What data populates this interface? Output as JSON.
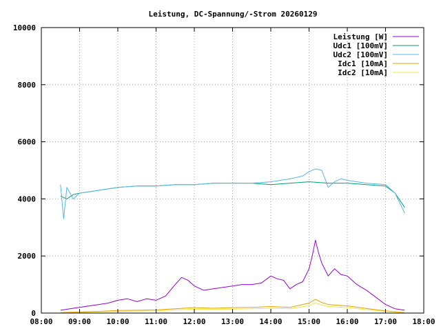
{
  "chart_data": {
    "type": "line",
    "title": "Leistung, DC-Spannung/-Strom 20260129",
    "xlabel": "",
    "ylabel": "",
    "xlim": [
      "08:00",
      "18:00"
    ],
    "ylim": [
      0,
      10000
    ],
    "x_ticks": [
      "08:00",
      "09:00",
      "10:00",
      "11:00",
      "12:00",
      "13:00",
      "14:00",
      "15:00",
      "16:00",
      "17:00",
      "18:00"
    ],
    "y_ticks": [
      "0",
      "2000",
      "4000",
      "6000",
      "8000",
      "10000"
    ],
    "grid": true,
    "legend_position": "top-right",
    "series": [
      {
        "name": "Leistung [W]",
        "color": "#9400d3",
        "x": [
          "08:30",
          "08:45",
          "09:00",
          "09:15",
          "09:30",
          "09:45",
          "10:00",
          "10:15",
          "10:30",
          "10:45",
          "11:00",
          "11:15",
          "11:30",
          "11:40",
          "11:50",
          "12:00",
          "12:15",
          "12:30",
          "12:45",
          "13:00",
          "13:15",
          "13:30",
          "13:45",
          "14:00",
          "14:10",
          "14:20",
          "14:30",
          "14:40",
          "14:50",
          "15:00",
          "15:05",
          "15:10",
          "15:15",
          "15:20",
          "15:30",
          "15:40",
          "15:50",
          "16:00",
          "16:15",
          "16:30",
          "16:45",
          "17:00",
          "17:15",
          "17:30"
        ],
        "values": [
          100,
          150,
          200,
          250,
          300,
          350,
          450,
          500,
          400,
          500,
          450,
          600,
          1000,
          1250,
          1150,
          950,
          800,
          850,
          900,
          950,
          1000,
          1000,
          1050,
          1300,
          1200,
          1150,
          850,
          1000,
          1100,
          1550,
          2000,
          2550,
          2100,
          1750,
          1300,
          1550,
          1350,
          1300,
          1000,
          800,
          550,
          300,
          150,
          100
        ]
      },
      {
        "name": "Udc1 [100mV]",
        "color": "#009e73",
        "x": [
          "08:30",
          "08:40",
          "08:50",
          "09:00",
          "09:30",
          "10:00",
          "10:30",
          "11:00",
          "11:30",
          "12:00",
          "12:30",
          "13:00",
          "13:30",
          "14:00",
          "14:30",
          "15:00",
          "15:30",
          "16:00",
          "16:30",
          "17:00",
          "17:15",
          "17:30"
        ],
        "values": [
          4100,
          4000,
          4150,
          4200,
          4300,
          4400,
          4450,
          4450,
          4500,
          4500,
          4550,
          4550,
          4550,
          4500,
          4550,
          4600,
          4550,
          4550,
          4500,
          4450,
          4200,
          3700
        ]
      },
      {
        "name": "Udc2 [100mV]",
        "color": "#56b4e9",
        "x": [
          "08:30",
          "08:35",
          "08:40",
          "08:50",
          "09:00",
          "09:30",
          "10:00",
          "10:30",
          "11:00",
          "11:30",
          "12:00",
          "12:30",
          "13:00",
          "13:30",
          "14:00",
          "14:30",
          "14:50",
          "15:00",
          "15:10",
          "15:20",
          "15:30",
          "15:40",
          "15:50",
          "16:00",
          "16:30",
          "17:00",
          "17:15",
          "17:30"
        ],
        "values": [
          4500,
          3300,
          4400,
          4000,
          4200,
          4300,
          4400,
          4450,
          4450,
          4500,
          4500,
          4550,
          4550,
          4550,
          4600,
          4700,
          4800,
          4950,
          5050,
          5000,
          4400,
          4600,
          4700,
          4650,
          4550,
          4500,
          4200,
          3500
        ]
      },
      {
        "name": "Idc1 [10mA]",
        "color": "#e69f00",
        "x": [
          "08:30",
          "09:00",
          "09:30",
          "10:00",
          "10:30",
          "11:00",
          "11:30",
          "12:00",
          "12:30",
          "13:00",
          "13:30",
          "14:00",
          "14:30",
          "15:00",
          "15:10",
          "15:20",
          "15:30",
          "16:00",
          "16:30",
          "17:00",
          "17:30"
        ],
        "values": [
          20,
          40,
          60,
          90,
          100,
          110,
          150,
          190,
          170,
          190,
          200,
          230,
          200,
          350,
          480,
          370,
          300,
          250,
          160,
          80,
          20
        ]
      },
      {
        "name": "Idc2 [10mA]",
        "color": "#f0e442",
        "x": [
          "08:30",
          "09:00",
          "09:30",
          "10:00",
          "10:30",
          "11:00",
          "11:30",
          "12:00",
          "12:30",
          "13:00",
          "13:30",
          "14:00",
          "14:30",
          "15:00",
          "15:10",
          "15:20",
          "15:30",
          "16:00",
          "16:30",
          "17:00",
          "17:30"
        ],
        "values": [
          10,
          20,
          40,
          60,
          70,
          80,
          110,
          140,
          130,
          140,
          150,
          170,
          150,
          260,
          360,
          280,
          230,
          190,
          120,
          60,
          10
        ]
      }
    ]
  }
}
